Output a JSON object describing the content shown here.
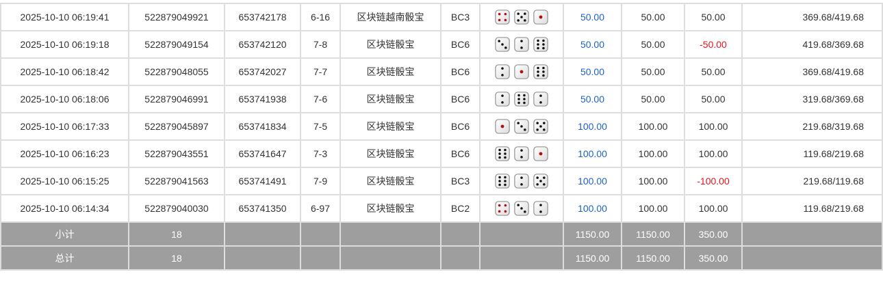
{
  "colors": {
    "accent_blue": "#1e62c8",
    "negative_red": "#e8141b",
    "footer_bg": "#9e9e9e"
  },
  "rows": [
    {
      "time": "2025-10-10 06:19:41",
      "order": "522879049921",
      "issue": "653742178",
      "period": "6-16",
      "game": "区块链越南骰宝",
      "table": "BC3",
      "dice": [
        4,
        5,
        1
      ],
      "bet": "50.00",
      "valid": "50.00",
      "win": "50.00",
      "balance": "369.68/419.68"
    },
    {
      "time": "2025-10-10 06:19:18",
      "order": "522879049154",
      "issue": "653742120",
      "period": "7-8",
      "game": "区块链骰宝",
      "table": "BC6",
      "dice": [
        3,
        2,
        6
      ],
      "bet": "50.00",
      "valid": "50.00",
      "win": "-50.00",
      "balance": "419.68/369.68"
    },
    {
      "time": "2025-10-10 06:18:42",
      "order": "522879048055",
      "issue": "653742027",
      "period": "7-7",
      "game": "区块链骰宝",
      "table": "BC6",
      "dice": [
        2,
        1,
        6
      ],
      "bet": "50.00",
      "valid": "50.00",
      "win": "50.00",
      "balance": "369.68/419.68"
    },
    {
      "time": "2025-10-10 06:18:06",
      "order": "522879046991",
      "issue": "653741938",
      "period": "7-6",
      "game": "区块链骰宝",
      "table": "BC6",
      "dice": [
        2,
        6,
        2
      ],
      "bet": "50.00",
      "valid": "50.00",
      "win": "50.00",
      "balance": "319.68/369.68"
    },
    {
      "time": "2025-10-10 06:17:33",
      "order": "522879045897",
      "issue": "653741834",
      "period": "7-5",
      "game": "区块链骰宝",
      "table": "BC6",
      "dice": [
        1,
        3,
        5
      ],
      "bet": "100.00",
      "valid": "100.00",
      "win": "100.00",
      "balance": "219.68/319.68"
    },
    {
      "time": "2025-10-10 06:16:23",
      "order": "522879043551",
      "issue": "653741647",
      "period": "7-3",
      "game": "区块链骰宝",
      "table": "BC6",
      "dice": [
        6,
        2,
        1
      ],
      "bet": "100.00",
      "valid": "100.00",
      "win": "100.00",
      "balance": "119.68/219.68"
    },
    {
      "time": "2025-10-10 06:15:25",
      "order": "522879041563",
      "issue": "653741491",
      "period": "7-9",
      "game": "区块链骰宝",
      "table": "BC3",
      "dice": [
        6,
        2,
        5
      ],
      "bet": "100.00",
      "valid": "100.00",
      "win": "-100.00",
      "balance": "219.68/119.68"
    },
    {
      "time": "2025-10-10 06:14:34",
      "order": "522879040030",
      "issue": "653741350",
      "period": "6-97",
      "game": "区块链骰宝",
      "table": "BC2",
      "dice": [
        4,
        3,
        2
      ],
      "bet": "100.00",
      "valid": "100.00",
      "win": "100.00",
      "balance": "119.68/219.68"
    }
  ],
  "footer": [
    {
      "label": "小计",
      "count": "18",
      "bet": "1150.00",
      "valid": "1150.00",
      "win": "350.00"
    },
    {
      "label": "总计",
      "count": "18",
      "bet": "1150.00",
      "valid": "1150.00",
      "win": "350.00"
    }
  ]
}
